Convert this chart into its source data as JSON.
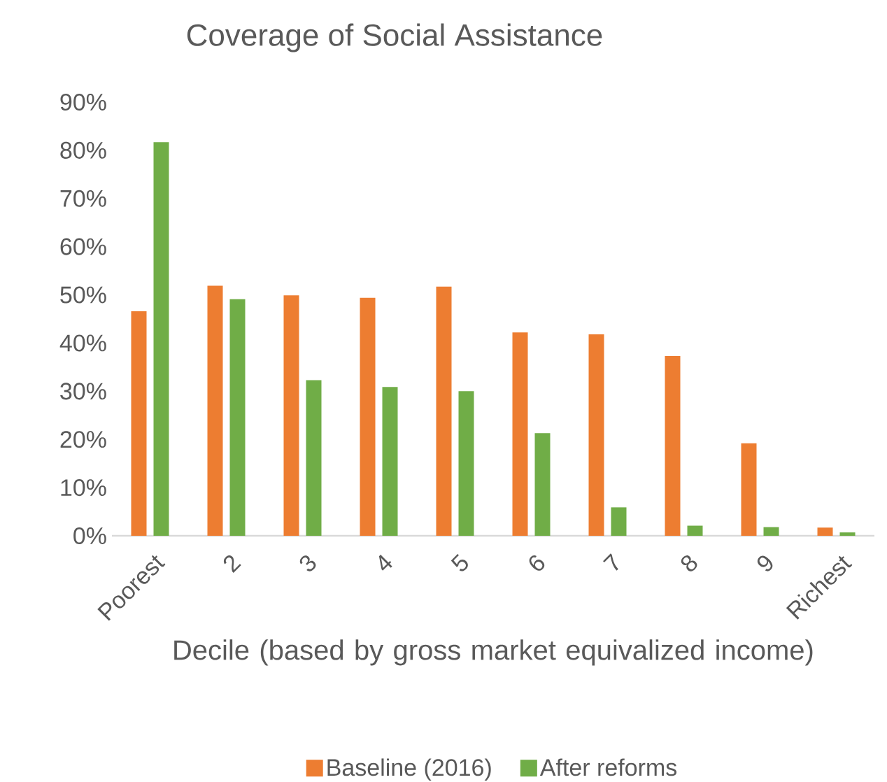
{
  "chart_data": {
    "type": "bar",
    "title": "Coverage of Social Assistance",
    "xlabel": "Decile (based by gross market equivalized income)",
    "categories": [
      "Poorest",
      "2",
      "3",
      "4",
      "5",
      "6",
      "7",
      "8",
      "9",
      "Richest"
    ],
    "series": [
      {
        "name": "Baseline (2016)",
        "color": "#ed7d31",
        "values": [
          46.6,
          51.9,
          49.9,
          49.4,
          51.7,
          42.2,
          41.8,
          37.3,
          19.2,
          1.7
        ]
      },
      {
        "name": "After reforms",
        "color": "#70ad47",
        "values": [
          81.7,
          49.1,
          32.3,
          30.9,
          30.0,
          21.3,
          5.9,
          2.1,
          1.8,
          0.7
        ]
      }
    ],
    "ylim": [
      0,
      90
    ],
    "yticks": [
      {
        "value": 0,
        "label": "0%"
      },
      {
        "value": 10,
        "label": "10%"
      },
      {
        "value": 20,
        "label": "20%"
      },
      {
        "value": 30,
        "label": "30%"
      },
      {
        "value": 40,
        "label": "40%"
      },
      {
        "value": 50,
        "label": "50%"
      },
      {
        "value": 60,
        "label": "60%"
      },
      {
        "value": 70,
        "label": "70%"
      },
      {
        "value": 80,
        "label": "80%"
      },
      {
        "value": 90,
        "label": "90%"
      }
    ],
    "grid": false,
    "legend": "bottom"
  }
}
